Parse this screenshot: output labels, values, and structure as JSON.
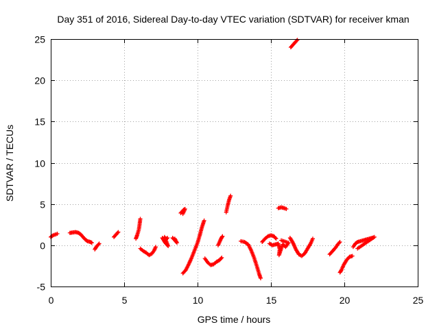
{
  "chart_data": {
    "type": "scatter",
    "title": "Day 351 of 2016, Sidereal Day-to-day VTEC variation (SDTVAR) for receiver kman",
    "xlabel": "GPS time / hours",
    "ylabel": "SDTVAR / TECUs",
    "xlim": [
      0,
      25
    ],
    "ylim": [
      -5,
      25
    ],
    "xticks": [
      0,
      5,
      10,
      15,
      20,
      25
    ],
    "yticks": [
      -5,
      0,
      5,
      10,
      15,
      20,
      25
    ],
    "xtick_labels": [
      "0",
      "5",
      "10",
      "15",
      "20",
      "25"
    ],
    "ytick_labels": [
      "-5",
      "0",
      "5",
      "10",
      "15",
      "20",
      "25"
    ],
    "grid": true,
    "marker": "+",
    "color": "#ff0000",
    "series": [
      {
        "name": "SDTVAR",
        "segments": [
          [
            [
              0.0,
              1.0
            ],
            [
              0.15,
              1.2
            ],
            [
              0.3,
              1.3
            ],
            [
              0.45,
              1.4
            ]
          ],
          [
            [
              1.3,
              1.5
            ],
            [
              1.5,
              1.55
            ],
            [
              1.7,
              1.6
            ],
            [
              1.9,
              1.5
            ],
            [
              2.05,
              1.3
            ],
            [
              2.2,
              1.0
            ],
            [
              2.35,
              0.7
            ],
            [
              2.5,
              0.5
            ],
            [
              2.7,
              0.4
            ],
            [
              2.8,
              0.3
            ]
          ],
          [
            [
              3.0,
              -0.5
            ],
            [
              3.1,
              -0.2
            ],
            [
              3.2,
              0.0
            ],
            [
              3.3,
              0.2
            ]
          ],
          [
            [
              4.3,
              1.0
            ],
            [
              4.4,
              1.2
            ],
            [
              4.5,
              1.4
            ],
            [
              4.6,
              1.6
            ]
          ],
          [
            [
              5.8,
              0.8
            ],
            [
              5.9,
              1.3
            ],
            [
              6.0,
              1.9
            ],
            [
              6.05,
              2.5
            ],
            [
              6.1,
              3.2
            ]
          ],
          [
            [
              6.1,
              -0.4
            ],
            [
              6.3,
              -0.7
            ],
            [
              6.5,
              -0.9
            ],
            [
              6.7,
              -1.2
            ],
            [
              6.9,
              -1.0
            ],
            [
              7.05,
              -0.6
            ],
            [
              7.15,
              -0.2
            ]
          ],
          [
            [
              7.6,
              0.9
            ],
            [
              7.7,
              0.6
            ],
            [
              7.8,
              0.3
            ],
            [
              7.9,
              0.1
            ],
            [
              8.0,
              -0.1
            ],
            [
              7.75,
              1.0
            ],
            [
              7.85,
              0.7
            ],
            [
              7.95,
              0.9
            ]
          ],
          [
            [
              8.3,
              0.9
            ],
            [
              8.4,
              0.7
            ],
            [
              8.5,
              0.5
            ],
            [
              8.6,
              0.3
            ],
            [
              8.45,
              0.8
            ]
          ],
          [
            [
              8.85,
              3.9
            ],
            [
              8.95,
              4.1
            ],
            [
              9.05,
              4.3
            ],
            [
              9.15,
              4.4
            ],
            [
              9.0,
              3.8
            ]
          ],
          [
            [
              9.0,
              -3.4
            ],
            [
              9.2,
              -3.0
            ],
            [
              9.4,
              -2.3
            ],
            [
              9.6,
              -1.5
            ],
            [
              9.8,
              -0.6
            ],
            [
              10.0,
              0.3
            ],
            [
              10.15,
              1.2
            ],
            [
              10.3,
              2.2
            ],
            [
              10.45,
              3.0
            ]
          ],
          [
            [
              10.5,
              -1.6
            ],
            [
              10.7,
              -2.1
            ],
            [
              10.9,
              -2.4
            ],
            [
              11.1,
              -2.3
            ],
            [
              11.3,
              -2.0
            ],
            [
              11.5,
              -1.8
            ],
            [
              11.65,
              -1.5
            ]
          ],
          [
            [
              11.4,
              0.0
            ],
            [
              11.5,
              0.4
            ],
            [
              11.6,
              0.8
            ],
            [
              11.7,
              1.1
            ]
          ],
          [
            [
              11.95,
              4.0
            ],
            [
              12.05,
              4.8
            ],
            [
              12.15,
              5.5
            ],
            [
              12.25,
              6.0
            ]
          ],
          [
            [
              12.95,
              0.5
            ],
            [
              13.2,
              0.4
            ],
            [
              13.45,
              0.1
            ],
            [
              13.65,
              -0.6
            ],
            [
              13.85,
              -1.5
            ],
            [
              14.05,
              -2.6
            ],
            [
              14.2,
              -3.5
            ],
            [
              14.3,
              -4.0
            ]
          ],
          [
            [
              14.4,
              0.4
            ],
            [
              14.6,
              0.8
            ],
            [
              14.8,
              1.1
            ],
            [
              15.0,
              1.2
            ],
            [
              15.2,
              1.1
            ],
            [
              15.35,
              0.8
            ]
          ],
          [
            [
              14.9,
              0.2
            ],
            [
              15.1,
              0.0
            ],
            [
              15.3,
              0.1
            ],
            [
              15.5,
              0.2
            ],
            [
              15.6,
              -0.5
            ],
            [
              15.55,
              -1.2
            ],
            [
              15.8,
              0.1
            ],
            [
              16.0,
              -0.2
            ],
            [
              16.2,
              0.3
            ],
            [
              15.7,
              0.6
            ]
          ],
          [
            [
              15.5,
              4.5
            ],
            [
              15.7,
              4.6
            ],
            [
              15.9,
              4.5
            ],
            [
              16.05,
              4.4
            ]
          ],
          [
            [
              16.3,
              0.9
            ],
            [
              16.5,
              0.3
            ],
            [
              16.7,
              -0.5
            ],
            [
              16.9,
              -1.1
            ],
            [
              17.1,
              -1.3
            ],
            [
              17.3,
              -1.0
            ],
            [
              17.5,
              -0.4
            ],
            [
              17.7,
              0.2
            ],
            [
              17.85,
              0.8
            ]
          ],
          [
            [
              16.35,
              24.0
            ],
            [
              16.5,
              24.3
            ],
            [
              16.65,
              24.6
            ],
            [
              16.8,
              24.9
            ]
          ],
          [
            [
              19.0,
              -1.1
            ],
            [
              19.2,
              -0.7
            ],
            [
              19.4,
              -0.3
            ],
            [
              19.55,
              0.1
            ],
            [
              19.7,
              0.4
            ]
          ],
          [
            [
              19.7,
              -3.3
            ],
            [
              19.8,
              -3.0
            ],
            [
              19.95,
              -2.4
            ],
            [
              20.15,
              -1.8
            ],
            [
              20.35,
              -1.4
            ],
            [
              20.55,
              -1.3
            ]
          ],
          [
            [
              20.6,
              -0.2
            ],
            [
              20.75,
              0.2
            ],
            [
              20.9,
              0.4
            ],
            [
              21.1,
              0.5
            ],
            [
              21.3,
              0.6
            ],
            [
              21.5,
              0.7
            ],
            [
              21.7,
              0.8
            ],
            [
              21.9,
              0.9
            ],
            [
              22.05,
              1.0
            ],
            [
              20.9,
              -0.4
            ]
          ]
        ]
      }
    ]
  }
}
